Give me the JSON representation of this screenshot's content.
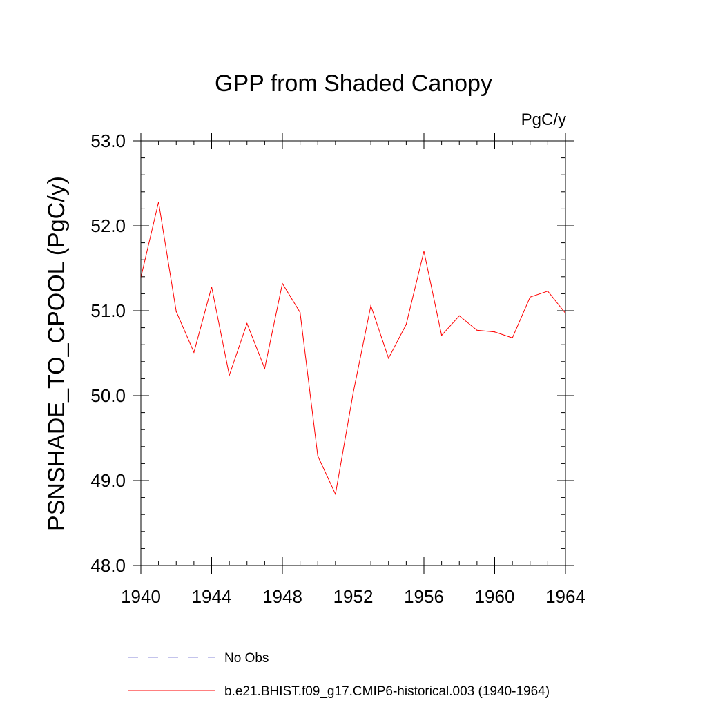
{
  "chart_data": {
    "type": "line",
    "title": "GPP from Shaded Canopy",
    "units": "PgC/y",
    "xlabel": "",
    "ylabel": "PSNSHADE_TO_CPOOL  (PgC/y)",
    "xlim": [
      1940,
      1964
    ],
    "ylim": [
      48.0,
      53.0
    ],
    "x_tick_labels": [
      "1940",
      "1944",
      "1948",
      "1952",
      "1956",
      "1960",
      "1964"
    ],
    "x_tick_values": [
      1940,
      1944,
      1948,
      1952,
      1956,
      1960,
      1964
    ],
    "y_tick_labels": [
      "48.0",
      "49.0",
      "50.0",
      "51.0",
      "52.0",
      "53.0"
    ],
    "y_tick_values": [
      48.0,
      49.0,
      50.0,
      51.0,
      52.0,
      53.0
    ],
    "grid": false,
    "x": [
      1940,
      1941,
      1942,
      1943,
      1944,
      1945,
      1946,
      1947,
      1948,
      1949,
      1950,
      1951,
      1952,
      1953,
      1954,
      1955,
      1956,
      1957,
      1958,
      1959,
      1960,
      1961,
      1962,
      1963,
      1964
    ],
    "series": [
      {
        "name": "b.e21.BHIST.f09_g17.CMIP6-historical.003 (1940-1964)",
        "color": "#ff0000",
        "style": "solid",
        "values": [
          51.39,
          52.28,
          50.99,
          50.51,
          51.28,
          50.24,
          50.85,
          50.32,
          51.32,
          50.98,
          49.29,
          48.84,
          50.03,
          51.06,
          50.44,
          50.84,
          51.7,
          50.71,
          50.94,
          50.77,
          50.75,
          50.68,
          51.16,
          51.23,
          50.97
        ]
      }
    ],
    "legend": {
      "position": "bottom",
      "entries": [
        {
          "label": "No Obs",
          "color": "#8a8ad8",
          "style": "dashed"
        },
        {
          "label": "b.e21.BHIST.f09_g17.CMIP6-historical.003 (1940-1964)",
          "color": "#ff0000",
          "style": "solid"
        }
      ]
    }
  }
}
